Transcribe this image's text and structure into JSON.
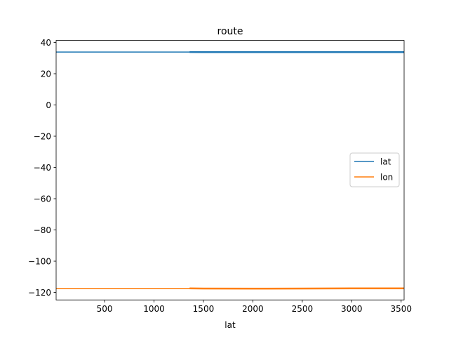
{
  "chart_data": {
    "type": "line",
    "title": "route",
    "xlabel": "lat",
    "ylabel": "",
    "xlim": [
      10,
      3530
    ],
    "ylim": [
      -124.8,
      41.3
    ],
    "xticks": [
      500,
      1000,
      1500,
      2000,
      2500,
      3000,
      3500
    ],
    "yticks": [
      40,
      20,
      0,
      -20,
      -40,
      -60,
      -80,
      -100,
      -120
    ],
    "xtick_labels": [
      "500",
      "1000",
      "1500",
      "2000",
      "2500",
      "3000",
      "3500"
    ],
    "ytick_labels": [
      "40",
      "20",
      "0",
      "−20",
      "−40",
      "−60",
      "−80",
      "−100",
      "−120"
    ],
    "grid": false,
    "legend_position": "center-right",
    "series": [
      {
        "name": "lat",
        "color": "#1f77b4",
        "x": [
          10,
          500,
          1000,
          1360,
          1500,
          2000,
          2500,
          3000,
          3530
        ],
        "y": [
          33.9,
          33.9,
          33.9,
          33.9,
          33.8,
          33.8,
          33.8,
          33.8,
          33.8
        ]
      },
      {
        "name": "lon",
        "color": "#ff7f0e",
        "x": [
          10,
          500,
          1000,
          1360,
          1500,
          2000,
          2500,
          3000,
          3530
        ],
        "y": [
          -117.4,
          -117.4,
          -117.4,
          -117.4,
          -117.5,
          -117.6,
          -117.5,
          -117.4,
          -117.4
        ]
      }
    ]
  }
}
